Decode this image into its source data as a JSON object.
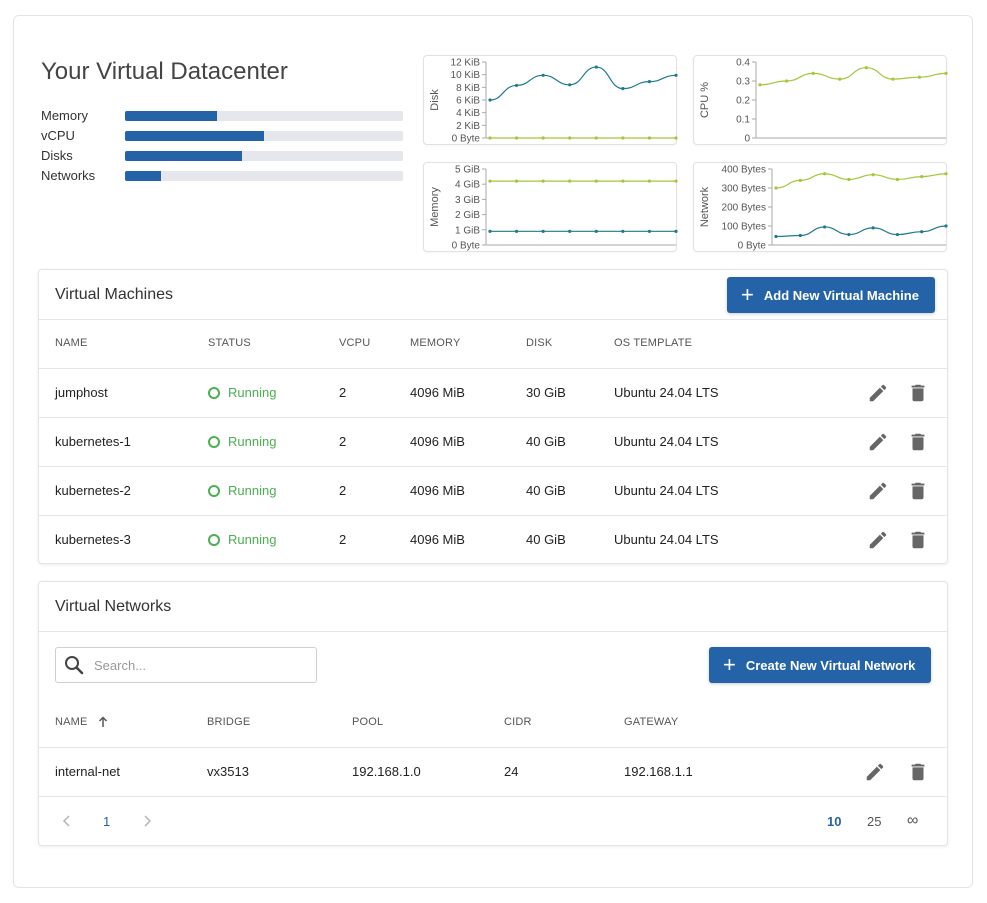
{
  "header": {
    "title": "Your Virtual Datacenter"
  },
  "usage": [
    {
      "label": "Memory",
      "fraction": 0.33
    },
    {
      "label": "vCPU",
      "fraction": 0.5
    },
    {
      "label": "Disks",
      "fraction": 0.42
    },
    {
      "label": "Networks",
      "fraction": 0.13
    }
  ],
  "charts": {
    "disk": {
      "ylabel": "Disk",
      "ticks": [
        "12 KiB",
        "10 KiB",
        "8 KiB",
        "6 KiB",
        "4 KiB",
        "2 KiB",
        "0 Byte"
      ]
    },
    "cpu": {
      "ylabel": "CPU %",
      "ticks": [
        "0.4",
        "0.3",
        "0.2",
        "0.1",
        "0"
      ]
    },
    "memory": {
      "ylabel": "Memory",
      "ticks": [
        "5 GiB",
        "4 GiB",
        "3 GiB",
        "2 GiB",
        "1 GiB",
        "0 Byte"
      ]
    },
    "network": {
      "ylabel": "Network",
      "ticks": [
        "400 Bytes",
        "300 Bytes",
        "200 Bytes",
        "100 Bytes",
        "0 Byte"
      ]
    }
  },
  "chart_data": [
    {
      "type": "line",
      "ylabel": "Disk",
      "ylim": [
        0,
        12
      ],
      "unit": "KiB",
      "series": [
        {
          "color": "#1f7a8c",
          "values": [
            6,
            8.3,
            9.9,
            8.4,
            11.2,
            7.8,
            8.9,
            9.9
          ]
        },
        {
          "color": "#a4c639",
          "values": [
            0,
            0,
            0,
            0,
            0,
            0,
            0,
            0
          ]
        }
      ]
    },
    {
      "type": "line",
      "ylabel": "CPU %",
      "ylim": [
        0,
        0.4
      ],
      "series": [
        {
          "color": "#a4c639",
          "values": [
            0.28,
            0.3,
            0.34,
            0.31,
            0.37,
            0.31,
            0.32,
            0.34
          ]
        }
      ]
    },
    {
      "type": "line",
      "ylabel": "Memory",
      "ylim": [
        0,
        5
      ],
      "unit": "GiB",
      "series": [
        {
          "color": "#a4c639",
          "values": [
            4.2,
            4.2,
            4.2,
            4.2,
            4.2,
            4.2,
            4.2,
            4.2
          ]
        },
        {
          "color": "#1f7a8c",
          "values": [
            0.9,
            0.9,
            0.9,
            0.9,
            0.9,
            0.9,
            0.9,
            0.9
          ]
        }
      ]
    },
    {
      "type": "line",
      "ylabel": "Network",
      "ylim": [
        0,
        400
      ],
      "unit": "Bytes",
      "series": [
        {
          "color": "#a4c639",
          "values": [
            300,
            340,
            375,
            345,
            370,
            345,
            360,
            375
          ]
        },
        {
          "color": "#1f7a8c",
          "values": [
            45,
            50,
            95,
            55,
            90,
            55,
            70,
            100
          ]
        }
      ]
    }
  ],
  "vm_card": {
    "title": "Virtual Machines",
    "add_button": "Add New Virtual Machine",
    "columns": [
      "NAME",
      "STATUS",
      "VCPU",
      "MEMORY",
      "DISK",
      "OS TEMPLATE"
    ],
    "rows": [
      {
        "name": "jumphost",
        "status": "Running",
        "vcpu": "2",
        "memory": "4096 MiB",
        "disk": "30 GiB",
        "os": "Ubuntu 24.04 LTS"
      },
      {
        "name": "kubernetes-1",
        "status": "Running",
        "vcpu": "2",
        "memory": "4096 MiB",
        "disk": "40 GiB",
        "os": "Ubuntu 24.04 LTS"
      },
      {
        "name": "kubernetes-2",
        "status": "Running",
        "vcpu": "2",
        "memory": "4096 MiB",
        "disk": "40 GiB",
        "os": "Ubuntu 24.04 LTS"
      },
      {
        "name": "kubernetes-3",
        "status": "Running",
        "vcpu": "2",
        "memory": "4096 MiB",
        "disk": "40 GiB",
        "os": "Ubuntu 24.04 LTS"
      }
    ]
  },
  "net_card": {
    "title": "Virtual Networks",
    "search_placeholder": "Search...",
    "create_button": "Create New Virtual Network",
    "columns": [
      "NAME",
      "BRIDGE",
      "POOL",
      "CIDR",
      "GATEWAY"
    ],
    "sort_icon": "arrow-up-icon",
    "rows": [
      {
        "name": "internal-net",
        "bridge": "vx3513",
        "pool": "192.168.1.0",
        "cidr": "24",
        "gateway": "192.168.1.1"
      }
    ],
    "pagination": {
      "page": "1",
      "sizes": [
        "10",
        "25",
        "∞"
      ],
      "selected_size": "10"
    }
  },
  "colors": {
    "primary": "#2563a8",
    "running": "#4caf50",
    "teal": "#1f7a8c",
    "lime": "#a4c639"
  }
}
